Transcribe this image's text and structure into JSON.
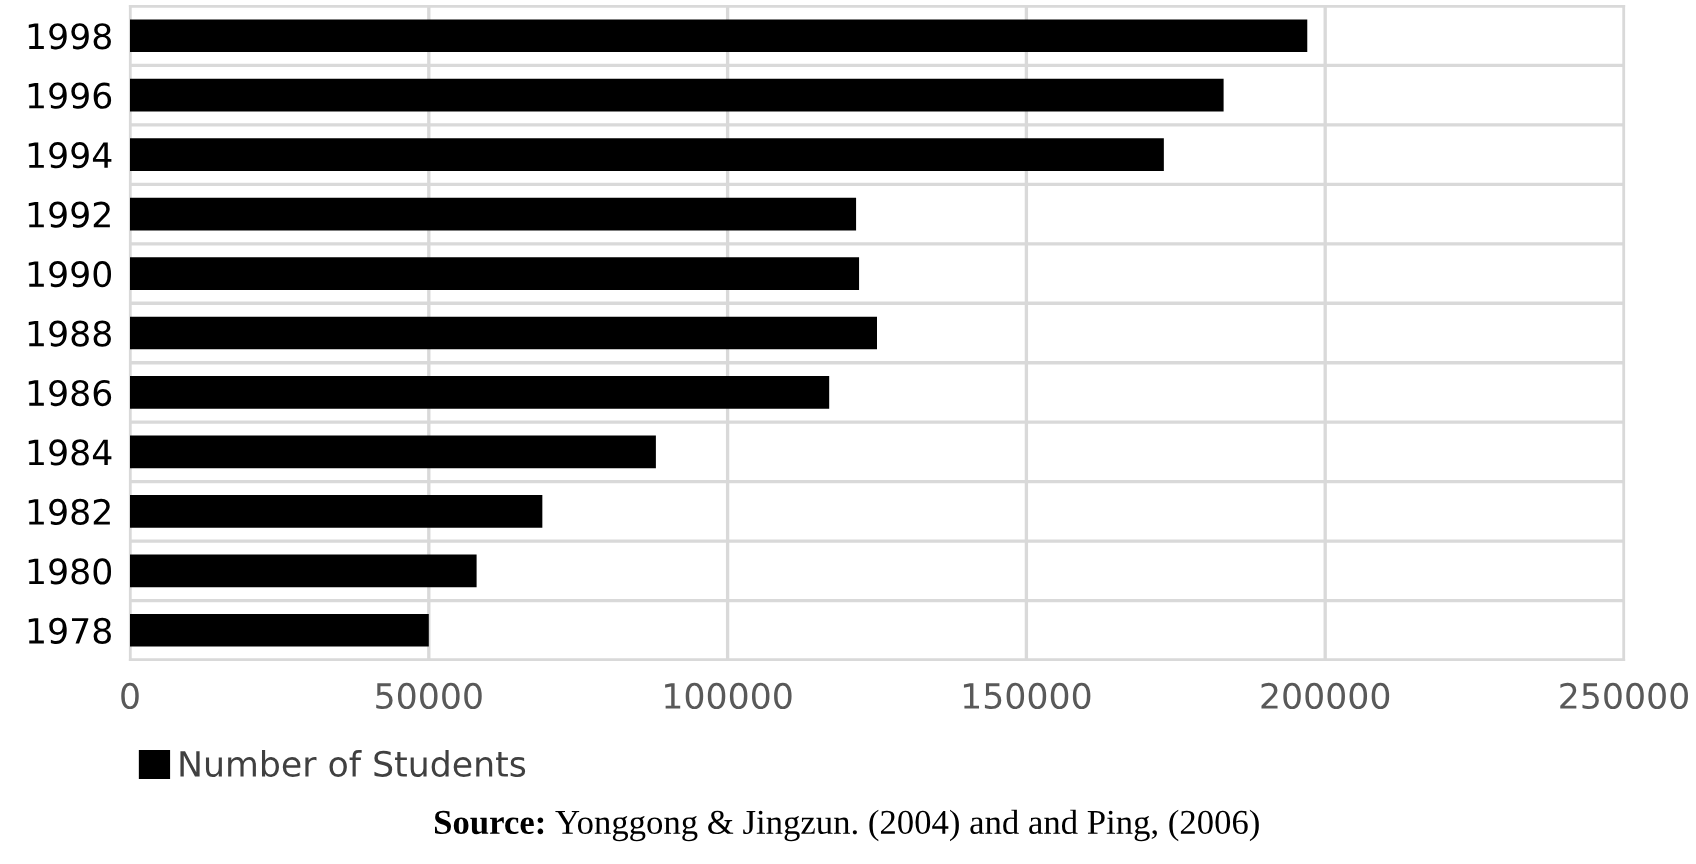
{
  "chart_data": {
    "type": "bar",
    "orientation": "horizontal",
    "categories": [
      "1998",
      "1996",
      "1994",
      "1992",
      "1990",
      "1988",
      "1986",
      "1984",
      "1982",
      "1980",
      "1978"
    ],
    "series": [
      {
        "name": "Number of Students",
        "color": "#000000",
        "values": [
          197000,
          183000,
          173000,
          121500,
          122000,
          125000,
          117000,
          88000,
          69000,
          58000,
          50000
        ]
      }
    ],
    "xlim": [
      0,
      250000
    ],
    "xticks": [
      0,
      50000,
      100000,
      150000,
      200000,
      250000
    ],
    "grid": true,
    "legend": "bottom left",
    "annotations": [
      "Source: Yonggong & Jingzun. (2004) and and Ping, (2006)"
    ]
  }
}
